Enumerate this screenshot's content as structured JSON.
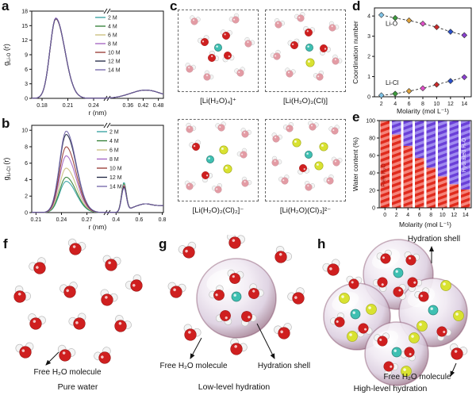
{
  "figure": {
    "background": "#ffffff",
    "panels": {
      "a": {
        "letter": "a"
      },
      "b": {
        "letter": "b"
      },
      "c": {
        "letter": "c",
        "captions": [
          "[Li(H₂O)₄]⁺",
          "[Li(H₂O)₃(Cl)]",
          "[Li(H₂O)₂(Cl)₂]⁻",
          "[Li(H₂O)(Cl)₃]²⁻"
        ]
      },
      "d": {
        "letter": "d"
      },
      "e": {
        "letter": "e"
      },
      "f": {
        "letter": "f",
        "caption": "Pure water",
        "label_free": "Free H₂O molecule"
      },
      "g": {
        "letter": "g",
        "caption": "Low-level hydration",
        "label_free": "Free H₂O molecule",
        "label_shell": "Hydration shell"
      },
      "h": {
        "letter": "h",
        "caption": "High-level hydration",
        "label_free": "Free H₂O molecule",
        "label_shell": "Hydration shell"
      }
    },
    "atom_colors": {
      "oxygen": "#cf1f1f",
      "oxygen_pale": "#e39ba4",
      "hydrogen": "#f4f4f4",
      "lithium": "#3fc0b2",
      "chloride": "#d9e231"
    }
  },
  "chart_data": [
    {
      "id": "a",
      "type": "line",
      "title": "",
      "xlabel": "r (nm)",
      "ylabel": {
        "base": "g",
        "sub": "Li-O",
        "suffix": " (r)"
      },
      "x_segments": [
        {
          "min": 0.168,
          "max": 0.252,
          "ticks": [
            0.18,
            0.21,
            0.24
          ]
        },
        {
          "min": 0.29,
          "max": 0.5,
          "ticks": [
            0.36,
            0.42,
            0.48
          ]
        }
      ],
      "axis_break": true,
      "ylim": [
        0,
        18
      ],
      "yticks": [
        0,
        3,
        6,
        9,
        12,
        15,
        18
      ],
      "legend_position": "top-right",
      "series": [
        {
          "label": "2 M",
          "color": "#2f9e9e",
          "peak1": {
            "x": 0.196,
            "y": 16.5
          },
          "peak2": {
            "x": 0.43,
            "y": 1.7
          }
        },
        {
          "label": "4 M",
          "color": "#2e7d32",
          "peak1": {
            "x": 0.196,
            "y": 16.4
          },
          "peak2": {
            "x": 0.43,
            "y": 1.7
          }
        },
        {
          "label": "6 M",
          "color": "#c9bd7a",
          "peak1": {
            "x": 0.196,
            "y": 16.5
          },
          "peak2": {
            "x": 0.43,
            "y": 1.7
          }
        },
        {
          "label": "8 M",
          "color": "#a05fc0",
          "peak1": {
            "x": 0.196,
            "y": 16.6
          },
          "peak2": {
            "x": 0.43,
            "y": 1.7
          }
        },
        {
          "label": "10 M",
          "color": "#96352f",
          "peak1": {
            "x": 0.196,
            "y": 16.4
          },
          "peak2": {
            "x": 0.43,
            "y": 1.7
          }
        },
        {
          "label": "12 M",
          "color": "#1c2340",
          "peak1": {
            "x": 0.196,
            "y": 16.5
          },
          "peak2": {
            "x": 0.43,
            "y": 1.7
          }
        },
        {
          "label": "14 M",
          "color": "#6f62a8",
          "peak1": {
            "x": 0.196,
            "y": 16.5
          },
          "peak2": {
            "x": 0.43,
            "y": 1.7
          }
        }
      ]
    },
    {
      "id": "b",
      "type": "line",
      "title": "",
      "xlabel": "r (nm)",
      "ylabel": {
        "base": "g",
        "sub": "Li-Cl",
        "suffix": " (r)"
      },
      "x_segments": [
        {
          "min": 0.205,
          "max": 0.29,
          "ticks": [
            0.21,
            0.24,
            0.27
          ]
        },
        {
          "min": 0.35,
          "max": 0.81,
          "ticks": [
            0.4,
            0.6,
            0.8
          ]
        }
      ],
      "axis_break": true,
      "ylim": [
        0,
        10.6
      ],
      "yticks": [
        0,
        2,
        4,
        6,
        8,
        10
      ],
      "legend_position": "top-right",
      "series": [
        {
          "label": "2 M",
          "color": "#2f9e9e",
          "peak1": {
            "x": 0.2455,
            "y": 3.8
          },
          "peak2": {
            "x": 0.468,
            "y": 3.55
          }
        },
        {
          "label": "4 M",
          "color": "#2e7d32",
          "peak1": {
            "x": 0.2455,
            "y": 4.3
          },
          "peak2": {
            "x": 0.468,
            "y": 3.4
          }
        },
        {
          "label": "6 M",
          "color": "#c9bd7a",
          "peak1": {
            "x": 0.2455,
            "y": 5.4
          },
          "peak2": {
            "x": 0.468,
            "y": 3.3
          }
        },
        {
          "label": "8 M",
          "color": "#a05fc0",
          "peak1": {
            "x": 0.2455,
            "y": 6.9
          },
          "peak2": {
            "x": 0.468,
            "y": 3.2
          }
        },
        {
          "label": "10 M",
          "color": "#96352f",
          "peak1": {
            "x": 0.2455,
            "y": 8.0
          },
          "peak2": {
            "x": 0.468,
            "y": 3.1
          }
        },
        {
          "label": "12 M",
          "color": "#1c2340",
          "peak1": {
            "x": 0.2455,
            "y": 9.5
          },
          "peak2": {
            "x": 0.468,
            "y": 3.0
          }
        },
        {
          "label": "14 M",
          "color": "#6f62a8",
          "peak1": {
            "x": 0.2455,
            "y": 9.9
          },
          "peak2": {
            "x": 0.468,
            "y": 2.9
          }
        }
      ]
    },
    {
      "id": "d",
      "type": "scatter",
      "xlabel": "Molarity (mol L⁻¹)",
      "ylabel": "Coordination number",
      "x": [
        2,
        4,
        6,
        8,
        10,
        12,
        14
      ],
      "xticks": [
        2,
        4,
        6,
        8,
        10,
        12,
        14
      ],
      "xlim": [
        1,
        15
      ],
      "ylim": [
        0,
        4.4
      ],
      "yticks": [
        0,
        1,
        2,
        3,
        4
      ],
      "point_colors": [
        "#7fc4e8",
        "#3c9a3c",
        "#dfa23c",
        "#e050c8",
        "#cc2a2a",
        "#2a50cc",
        "#8a40d0"
      ],
      "series": [
        {
          "name": "Li-O",
          "values": [
            4.05,
            3.9,
            3.78,
            3.62,
            3.45,
            3.22,
            3.05
          ]
        },
        {
          "name": "Li-Cl",
          "values": [
            0.07,
            0.15,
            0.28,
            0.42,
            0.6,
            0.78,
            0.97
          ]
        }
      ],
      "annotations": [
        {
          "text": "Li-O",
          "x": 2.6,
          "y": 3.52
        },
        {
          "text": "Li-Cl",
          "x": 2.6,
          "y": 0.58
        }
      ]
    },
    {
      "id": "e",
      "type": "bar-stacked",
      "xlabel": "Molarity (mol L⁻¹)",
      "ylabel": "Water content (%)",
      "categories": [
        0,
        2,
        4,
        6,
        8,
        10,
        12,
        14
      ],
      "ylim": [
        0,
        100
      ],
      "yticks": [
        0,
        20,
        40,
        60,
        80,
        100
      ],
      "series": [
        {
          "name": "Free H₂O",
          "color": "#e8352b",
          "values": [
            100,
            84,
            71,
            57,
            46,
            36,
            27,
            21
          ]
        },
        {
          "name": "Hydrated H₂O",
          "color": "#7b4fe0",
          "values": [
            0,
            16,
            29,
            43,
            54,
            64,
            73,
            79
          ]
        }
      ],
      "bar_label_colors": {
        "free": "#a01208",
        "hydrated": "#e8e2ff"
      }
    }
  ]
}
